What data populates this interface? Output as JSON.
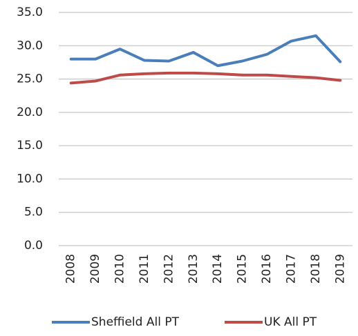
{
  "chart_data": {
    "type": "line",
    "categories": [
      "2008",
      "2009",
      "2010",
      "2011",
      "2012",
      "2013",
      "2014",
      "2015",
      "2016",
      "2017",
      "2018",
      "2019"
    ],
    "series": [
      {
        "name": "Sheffield All PT",
        "color": "#4a7ebb",
        "values": [
          28.0,
          28.0,
          29.5,
          27.8,
          27.7,
          29.0,
          27.0,
          27.7,
          28.7,
          30.7,
          31.5,
          27.6
        ]
      },
      {
        "name": "UK All PT",
        "color": "#be4b48",
        "values": [
          24.4,
          24.7,
          25.6,
          25.8,
          25.9,
          25.9,
          25.8,
          25.6,
          25.6,
          25.4,
          25.2,
          24.8
        ]
      }
    ],
    "ylim": [
      0,
      35
    ],
    "yticks": [
      {
        "value": 0,
        "label": "0.0"
      },
      {
        "value": 5,
        "label": "5.0"
      },
      {
        "value": 10,
        "label": "10.0"
      },
      {
        "value": 15,
        "label": "15.0"
      },
      {
        "value": 20,
        "label": "20.0"
      },
      {
        "value": 25,
        "label": "25.0"
      },
      {
        "value": 30,
        "label": "30.0"
      },
      {
        "value": 35,
        "label": "35.0"
      }
    ],
    "grid": true,
    "legend": "bottom"
  }
}
